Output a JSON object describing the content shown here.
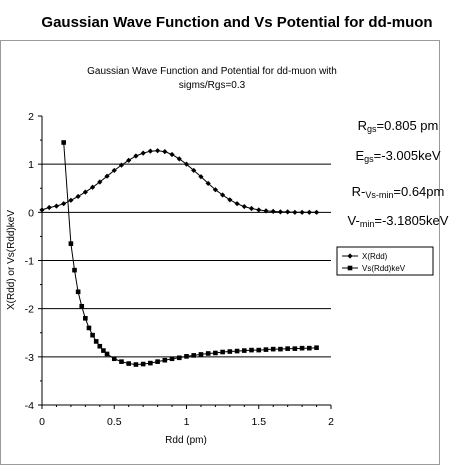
{
  "page_title": "Gaussian Wave Function and Vs Potential for dd-muon",
  "chart_data": {
    "type": "line",
    "title": "Gaussian Wave Function and Potential for dd-muon with",
    "subtitle": "sigms/Rgs=0.3",
    "xlabel": "Rdd (pm)",
    "ylabel": "X(Rdd) or Vs(Rdd)keV",
    "xlim": [
      0,
      2
    ],
    "ylim": [
      -4,
      2
    ],
    "xticks": [
      "0",
      "0.5",
      "1",
      "1.5",
      "2"
    ],
    "yticks": [
      "2",
      "1",
      "0",
      "-1",
      "-2",
      "-3",
      "-4"
    ],
    "gridlines_y": [
      1,
      0,
      -1,
      -2,
      -3
    ],
    "legend_position": "right",
    "series": [
      {
        "name": "X(Rdd)",
        "marker": "diamond",
        "x": [
          0.0,
          0.05,
          0.1,
          0.15,
          0.2,
          0.25,
          0.3,
          0.35,
          0.4,
          0.45,
          0.5,
          0.55,
          0.6,
          0.65,
          0.7,
          0.75,
          0.8,
          0.85,
          0.9,
          0.95,
          1.0,
          1.05,
          1.1,
          1.15,
          1.2,
          1.25,
          1.3,
          1.35,
          1.4,
          1.45,
          1.5,
          1.55,
          1.6,
          1.65,
          1.7,
          1.75,
          1.8,
          1.85,
          1.9
        ],
        "y": [
          0.05,
          0.1,
          0.13,
          0.18,
          0.25,
          0.33,
          0.42,
          0.52,
          0.63,
          0.75,
          0.87,
          0.98,
          1.08,
          1.17,
          1.23,
          1.27,
          1.28,
          1.26,
          1.2,
          1.11,
          1.0,
          0.87,
          0.74,
          0.6,
          0.47,
          0.36,
          0.26,
          0.18,
          0.12,
          0.08,
          0.05,
          0.03,
          0.02,
          0.01,
          0.01,
          0.0,
          0.0,
          0.0,
          0.0
        ]
      },
      {
        "name": "Vs(Rdd)keV",
        "marker": "square",
        "x": [
          0.15,
          0.2,
          0.225,
          0.25,
          0.275,
          0.3,
          0.325,
          0.35,
          0.375,
          0.4,
          0.425,
          0.45,
          0.5,
          0.55,
          0.6,
          0.65,
          0.7,
          0.75,
          0.8,
          0.85,
          0.9,
          0.95,
          1.0,
          1.05,
          1.1,
          1.15,
          1.2,
          1.25,
          1.3,
          1.35,
          1.4,
          1.45,
          1.5,
          1.55,
          1.6,
          1.65,
          1.7,
          1.75,
          1.8,
          1.85,
          1.9
        ],
        "y": [
          1.45,
          -0.65,
          -1.2,
          -1.65,
          -1.95,
          -2.2,
          -2.4,
          -2.55,
          -2.68,
          -2.78,
          -2.87,
          -2.94,
          -3.04,
          -3.1,
          -3.14,
          -3.16,
          -3.15,
          -3.13,
          -3.1,
          -3.07,
          -3.04,
          -3.02,
          -2.99,
          -2.97,
          -2.95,
          -2.93,
          -2.92,
          -2.9,
          -2.89,
          -2.88,
          -2.87,
          -2.86,
          -2.86,
          -2.85,
          -2.84,
          -2.84,
          -2.83,
          -2.83,
          -2.82,
          -2.82,
          -2.81
        ]
      }
    ],
    "annotations": [
      {
        "main": "R",
        "sub": "gs",
        "rest": "=0.805 pm"
      },
      {
        "main": "E",
        "sub": "gs",
        "rest": "=-3.005keV"
      },
      {
        "main": "R-",
        "sub": "Vs-min",
        "rest": "=0.64pm"
      },
      {
        "main": "V-",
        "sub": "min",
        "rest": "=-3.1805keV"
      }
    ]
  }
}
